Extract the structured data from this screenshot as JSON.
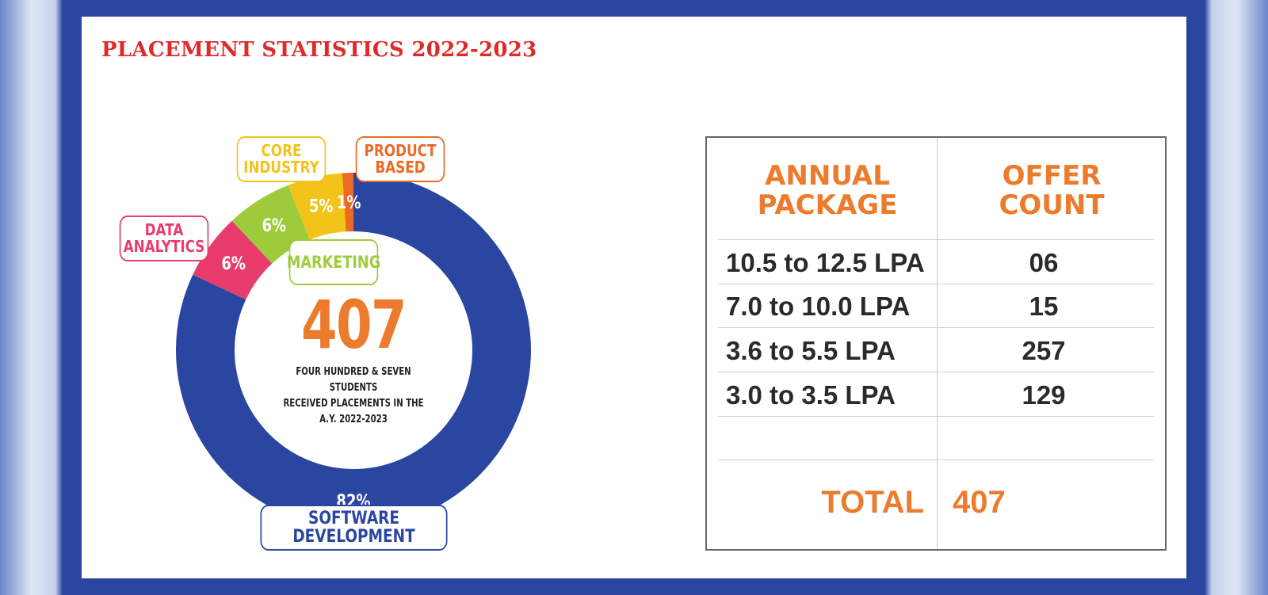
{
  "title": "PLACEMENT STATISTICS 2022-2023",
  "chart_data": {
    "type": "pie",
    "variant": "donut",
    "title": "PLACEMENT STATISTICS 2022-2023",
    "center_value": "407",
    "center_caption": "FOUR HUNDRED & SEVEN STUDENTS\nRECEIVED PLACEMENTS IN THE\nA.Y. 2022-2023",
    "slices": [
      {
        "label": "SOFTWARE DEVELOPMENT",
        "value": 82,
        "value_label": "82%",
        "color": "#2b46a0"
      },
      {
        "label": "DATA\nANALYTICS",
        "value": 6,
        "value_label": "6%",
        "color": "#e83d6c"
      },
      {
        "label": "MARKETING",
        "value": 6,
        "value_label": "6%",
        "color": "#9ecb3b"
      },
      {
        "label": "CORE\nINDUSTRY",
        "value": 5,
        "value_label": "5%",
        "color": "#f2c318"
      },
      {
        "label": "PRODUCT\nBASED",
        "value": 1,
        "value_label": "1%",
        "color": "#ec6a24"
      }
    ]
  },
  "table": {
    "headers": [
      "ANNUAL\nPACKAGE",
      "OFFER\nCOUNT"
    ],
    "rows": [
      {
        "package": "10.5 to 12.5 LPA",
        "count": "06"
      },
      {
        "package": "7.0 to 10.0 LPA",
        "count": "15"
      },
      {
        "package": "3.6 to 5.5 LPA",
        "count": "257"
      },
      {
        "package": "3.0 to 3.5 LPA",
        "count": "129"
      }
    ],
    "total_label": "TOTAL",
    "total_value": "407",
    "accent_color": "#ec7b2d"
  }
}
